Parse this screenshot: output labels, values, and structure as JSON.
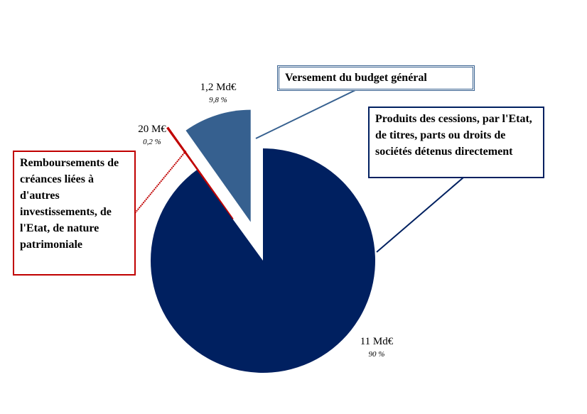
{
  "chart_data": {
    "type": "pie",
    "categories": [
      "Produits des cessions, par l'Etat, de titres, parts ou droits de sociétés détenus directement",
      "Remboursements de créances liées à d'autres investissements, de l'Etat, de nature patrimoniale",
      "Versement du budget général"
    ],
    "values": [
      90,
      0.2,
      9.8
    ],
    "value_labels": [
      "90 %",
      "0,2 %",
      "9,8 %"
    ],
    "amount_labels": [
      "11 Md€",
      "20 M€",
      "1,2 Md€"
    ],
    "colors": [
      "#002060",
      "#c00000",
      "#36608f"
    ]
  }
}
